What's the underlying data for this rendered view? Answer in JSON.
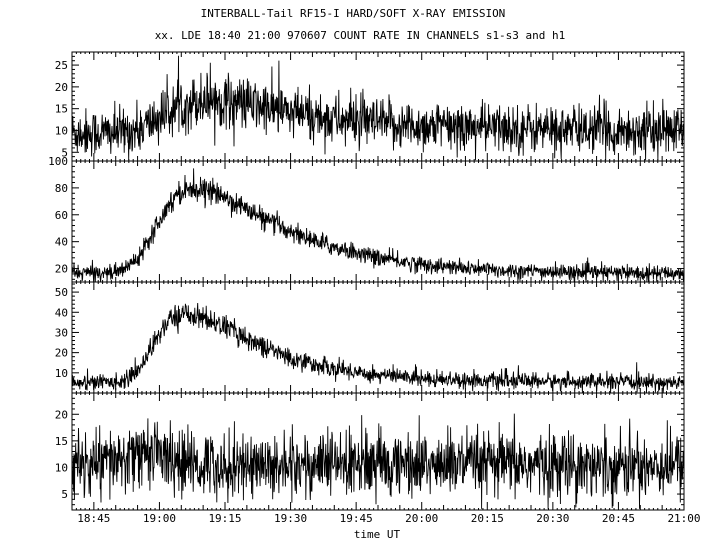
{
  "chart_data": {
    "type": "line",
    "title": "INTERBALL-Tail RF15-I HARD/SOFT X-RAY EMISSION",
    "subtitle": "xx. LDE 18:40 21:00 970607  COUNT RATE IN CHANNELS s1-s3 and h1",
    "xlabel": "time UT",
    "x_tick_labels": [
      "18:45",
      "19:00",
      "19:15",
      "19:30",
      "19:45",
      "20:00",
      "20:15",
      "20:30",
      "20:45",
      "21:00"
    ],
    "x_range_minutes": [
      0,
      140
    ],
    "x_tick_minutes": [
      5,
      20,
      35,
      50,
      65,
      80,
      95,
      110,
      125,
      140
    ],
    "grid": false,
    "panels": [
      {
        "ylim": [
          3,
          28
        ],
        "y_ticks": [
          5,
          10,
          15,
          20,
          25
        ],
        "x": [
          0,
          10,
          15,
          20,
          25,
          30,
          35,
          40,
          50,
          60,
          70,
          80,
          100,
          120,
          140
        ],
        "values": [
          9.5,
          9.5,
          10,
          13,
          16,
          17,
          17,
          16,
          14,
          12.5,
          11.5,
          11,
          10.5,
          10,
          10
        ],
        "noise": 3.2
      },
      {
        "ylim": [
          10,
          100
        ],
        "y_ticks": [
          20,
          40,
          60,
          80,
          100
        ],
        "x": [
          0,
          10,
          12,
          15,
          18,
          21,
          24,
          27,
          30,
          35,
          40,
          45,
          50,
          55,
          60,
          70,
          80,
          90,
          100,
          110,
          120,
          140
        ],
        "values": [
          17,
          17,
          20,
          28,
          45,
          62,
          76,
          80,
          79,
          73,
          64,
          55,
          48,
          41,
          36,
          28,
          23,
          20,
          18.5,
          17.5,
          17,
          16.5
        ],
        "noise": 3
      },
      {
        "ylim": [
          0,
          55
        ],
        "y_ticks": [
          10,
          20,
          30,
          40,
          50
        ],
        "x": [
          0,
          10,
          13,
          16,
          19,
          22,
          25,
          28,
          30,
          35,
          40,
          45,
          50,
          60,
          70,
          80,
          90,
          100,
          120,
          140
        ],
        "values": [
          5,
          5.5,
          7,
          14,
          26,
          36,
          39,
          39,
          37,
          33,
          27,
          22,
          17,
          12,
          9,
          7.5,
          6.5,
          6,
          5.5,
          5
        ],
        "noise": 2.5
      },
      {
        "ylim": [
          2,
          24
        ],
        "y_ticks": [
          5,
          10,
          15,
          20
        ],
        "x": [
          0,
          10,
          15,
          18,
          20,
          22,
          25,
          30,
          60,
          90,
          120,
          140
        ],
        "values": [
          10.5,
          11,
          12,
          13.5,
          13,
          11.5,
          10.5,
          10.5,
          10.5,
          10.5,
          10.5,
          10.5
        ],
        "noise": 3.5
      }
    ]
  }
}
